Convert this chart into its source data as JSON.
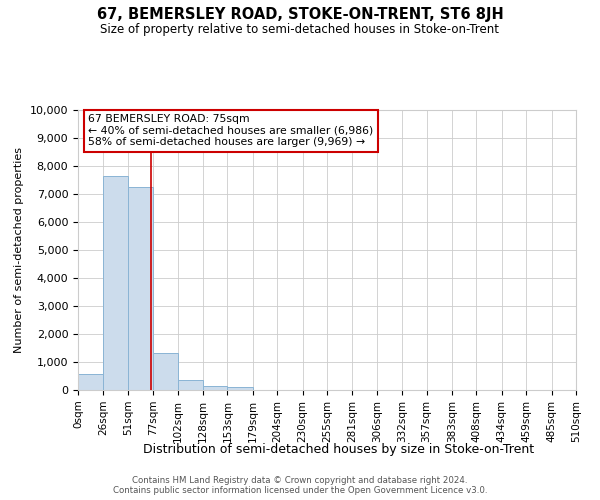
{
  "title": "67, BEMERSLEY ROAD, STOKE-ON-TRENT, ST6 8JH",
  "subtitle": "Size of property relative to semi-detached houses in Stoke-on-Trent",
  "xlabel": "Distribution of semi-detached houses by size in Stoke-on-Trent",
  "ylabel": "Number of semi-detached properties",
  "footer_line1": "Contains HM Land Registry data © Crown copyright and database right 2024.",
  "footer_line2": "Contains public sector information licensed under the Open Government Licence v3.0.",
  "annotation_title": "67 BEMERSLEY ROAD: 75sqm",
  "annotation_line1": "← 40% of semi-detached houses are smaller (6,986)",
  "annotation_line2": "58% of semi-detached houses are larger (9,969) →",
  "property_size": 75,
  "bin_edges": [
    0,
    26,
    51,
    77,
    102,
    128,
    153,
    179,
    204,
    230,
    255,
    281,
    306,
    332,
    357,
    383,
    408,
    434,
    459,
    485,
    510
  ],
  "bar_heights": [
    560,
    7650,
    7250,
    1330,
    340,
    130,
    120,
    0,
    0,
    0,
    0,
    0,
    0,
    0,
    0,
    0,
    0,
    0,
    0,
    0
  ],
  "bar_color": "#ccdcec",
  "bar_edge_color": "#8ab4d4",
  "red_line_color": "#cc0000",
  "annotation_box_color": "#ffffff",
  "annotation_box_edge": "#cc0000",
  "grid_color": "#cccccc",
  "background_color": "#ffffff",
  "ylim": [
    0,
    10000
  ],
  "yticks": [
    0,
    1000,
    2000,
    3000,
    4000,
    5000,
    6000,
    7000,
    8000,
    9000,
    10000
  ],
  "tick_labels": [
    "0sqm",
    "26sqm",
    "51sqm",
    "77sqm",
    "102sqm",
    "128sqm",
    "153sqm",
    "179sqm",
    "204sqm",
    "230sqm",
    "255sqm",
    "281sqm",
    "306sqm",
    "332sqm",
    "357sqm",
    "383sqm",
    "408sqm",
    "434sqm",
    "459sqm",
    "485sqm",
    "510sqm"
  ]
}
